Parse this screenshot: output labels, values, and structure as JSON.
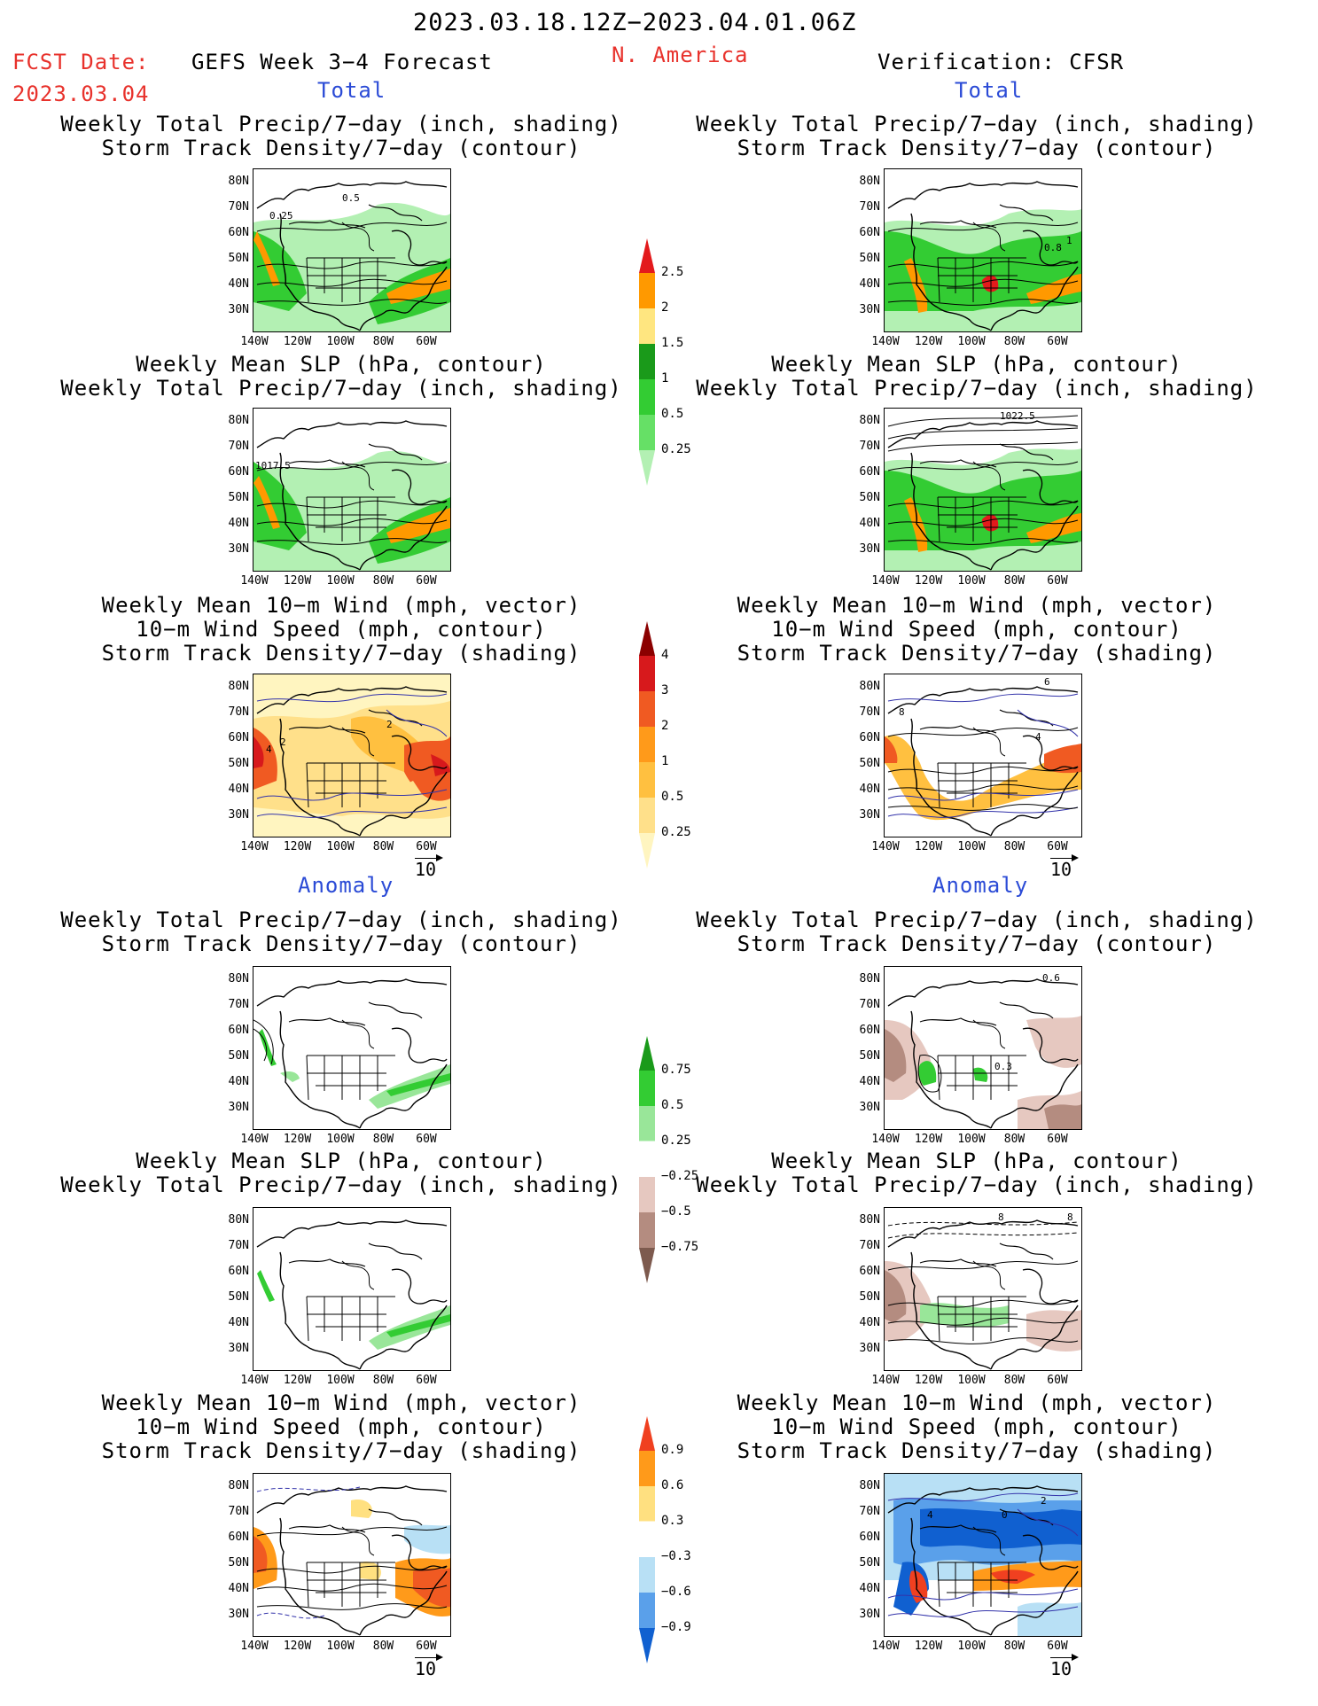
{
  "header": {
    "period": "2023.03.18.12Z−2023.04.01.06Z",
    "fcst_label": "FCST Date:",
    "fcst_date": "2023.03.04",
    "forecast": "GEFS Week 3−4 Forecast",
    "region": "N. America",
    "verification": "Verification: CFSR"
  },
  "sections": {
    "total": "Total",
    "anomaly": "Anomaly"
  },
  "titles": {
    "precip_storm": [
      "Weekly Total Precip/7−day (inch, shading)",
      "Storm Track Density/7−day (contour)"
    ],
    "slp_precip": [
      "Weekly Mean SLP (hPa, contour)",
      "Weekly Total Precip/7−day (inch, shading)"
    ],
    "wind_storm": [
      "Weekly Mean 10−m Wind (mph, vector)",
      "10−m Wind Speed (mph, contour)",
      "Storm Track Density/7−day (shading)"
    ]
  },
  "axes": {
    "lat_ticks": [
      "80N",
      "70N",
      "60N",
      "50N",
      "40N",
      "30N"
    ],
    "lon_ticks": [
      "140W",
      "120W",
      "100W",
      "80W",
      "60W"
    ]
  },
  "contour_labels": {
    "fcst_total_precip": [
      "0.5",
      "0.25"
    ],
    "verif_total_precip": [
      "1",
      "0.8"
    ],
    "fcst_total_slp": [
      "1017.5"
    ],
    "verif_total_slp": [
      "1022.5"
    ],
    "fcst_total_wind": [
      "2",
      "2",
      "4"
    ],
    "verif_total_wind": [
      "6",
      "8",
      "4"
    ],
    "verif_anom_precip": [
      "0.6",
      "0.3"
    ],
    "verif_anom_slp": [
      "8",
      "8"
    ],
    "verif_anom_wind": [
      "2",
      "0",
      "4"
    ]
  },
  "vector_ref": "10",
  "colorbars": {
    "precip_total": {
      "labels": [
        "2.5",
        "2",
        "1.5",
        "1",
        "0.5",
        "0.25"
      ],
      "colors": [
        "#e31a1c",
        "#ff9900",
        "#ffe680",
        "#1a9a1a",
        "#33cc33",
        "#66e066",
        "#b3f0b3"
      ]
    },
    "storm_total": {
      "labels": [
        "4",
        "3",
        "2",
        "1",
        "0.5",
        "0.25"
      ],
      "colors": [
        "#8b0000",
        "#d7191c",
        "#f05a22",
        "#ff9a1a",
        "#ffc040",
        "#ffe08a",
        "#fff5c0"
      ]
    },
    "precip_anom": {
      "labels": [
        "0.75",
        "0.5",
        "0.25",
        "−0.25",
        "−0.5",
        "−0.75"
      ],
      "colors": [
        "#1a9a1a",
        "#33cc33",
        "#99e699",
        "#ffffff",
        "#e6c8c0",
        "#b48c80",
        "#7d5a4e"
      ]
    },
    "storm_anom": {
      "labels": [
        "0.9",
        "0.6",
        "0.3",
        "−0.3",
        "−0.6",
        "−0.9"
      ],
      "colors": [
        "#f04020",
        "#ff9a1a",
        "#ffe080",
        "#ffffff",
        "#b8e0f5",
        "#5aa0ea",
        "#1060d0"
      ]
    }
  }
}
